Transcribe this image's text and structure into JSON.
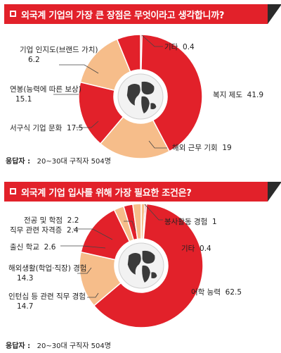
{
  "charts": [
    {
      "title": "외국계 기업의 가장 큰 장점은 무엇이라고 생각합니까?",
      "respondents_label": "응답자 :",
      "respondents_value": "20~30대 구직자 504명",
      "chart_data": {
        "type": "pie",
        "title": "외국계 기업의 가장 큰 장점은 무엇이라고 생각합니까?",
        "unit": "%",
        "slices": [
          {
            "label": "기타",
            "value": 0.4,
            "value_text": "0.4",
            "color": "#e2212a"
          },
          {
            "label": "복지 제도",
            "value": 41.9,
            "value_text": "41.9",
            "color": "#e2212a"
          },
          {
            "label": "해외 근무 기회",
            "value": 19,
            "value_text": "19",
            "color": "#f6bd8a"
          },
          {
            "label": "서구식 기업 문화",
            "value": 17.5,
            "value_text": "17.5",
            "color": "#e2212a"
          },
          {
            "label": "연봉(능력에 따른 보상)",
            "value": 15.1,
            "value_text": "15.1",
            "color": "#f6bd8a"
          },
          {
            "label": "기업 인지도(브랜드 가치)",
            "value": 6.2,
            "value_text": "6.2",
            "color": "#e2212a"
          }
        ]
      }
    },
    {
      "title": "외국계 기업 입사를 위해 가장 필요한 조건은?",
      "respondents_label": "응답자 :",
      "respondents_value": "20~30대 구직자 504명",
      "chart_data": {
        "type": "pie",
        "title": "외국계 기업 입사를 위해 가장 필요한 조건은?",
        "unit": "%",
        "slices": [
          {
            "label": "봉사활동 경험",
            "value": 1,
            "value_text": "1",
            "color": "#f6bd8a"
          },
          {
            "label": "기타",
            "value": 0.4,
            "value_text": "0.4",
            "color": "#e2212a"
          },
          {
            "label": "어학 능력",
            "value": 62.5,
            "value_text": "62.5",
            "color": "#e2212a"
          },
          {
            "label": "인턴십 등 관련 직무 경험",
            "value": 14.7,
            "value_text": "14.7",
            "color": "#f6bd8a"
          },
          {
            "label": "해외생활(학업·직장) 경험",
            "value": 14.3,
            "value_text": "14.3",
            "color": "#e2212a"
          },
          {
            "label": "출신 학교",
            "value": 2.6,
            "value_text": "2.6",
            "color": "#f6bd8a"
          },
          {
            "label": "직무 관련 자격증",
            "value": 2.4,
            "value_text": "2.4",
            "color": "#e2212a"
          },
          {
            "label": "전공 및 학점",
            "value": 2.2,
            "value_text": "2.2",
            "color": "#f6bd8a"
          }
        ]
      }
    }
  ]
}
